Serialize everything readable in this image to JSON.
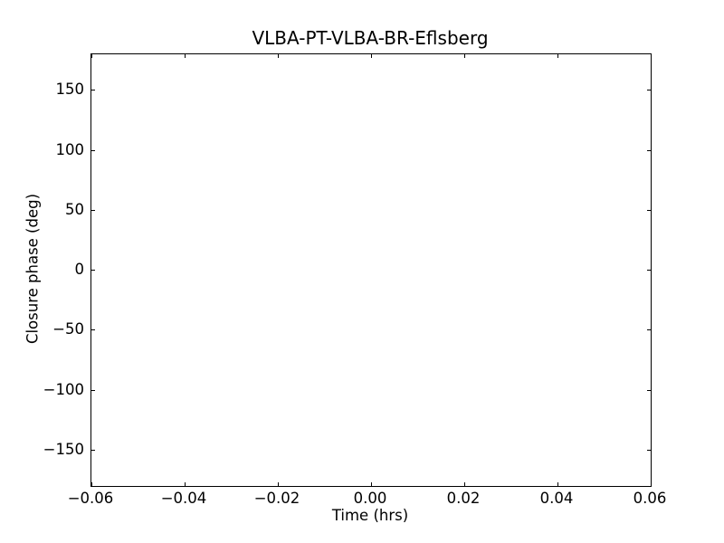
{
  "figure": {
    "background": "#ffffff",
    "axis_color": "#000000",
    "text_color": "#000000"
  },
  "chart_data": {
    "type": "scatter",
    "title": "VLBA-PT-VLBA-BR-Eflsberg",
    "xlabel": "Time (hrs)",
    "ylabel": "Closure phase (deg)",
    "xlim": [
      -0.06,
      0.06
    ],
    "ylim": [
      -180,
      180
    ],
    "xticks": {
      "values": [
        -0.06,
        -0.04,
        -0.02,
        0.0,
        0.02,
        0.04,
        0.06
      ],
      "labels": [
        "−0.06",
        "−0.04",
        "−0.02",
        "0.00",
        "0.02",
        "0.04",
        "0.06"
      ]
    },
    "yticks": {
      "values": [
        150,
        100,
        50,
        0,
        -50,
        -100,
        -150
      ],
      "labels": [
        "150",
        "100",
        "50",
        "0",
        "−50",
        "−100",
        "−150"
      ]
    },
    "series": [],
    "grid": false,
    "legend": false,
    "notes": "empty plot area - no data points plotted"
  }
}
